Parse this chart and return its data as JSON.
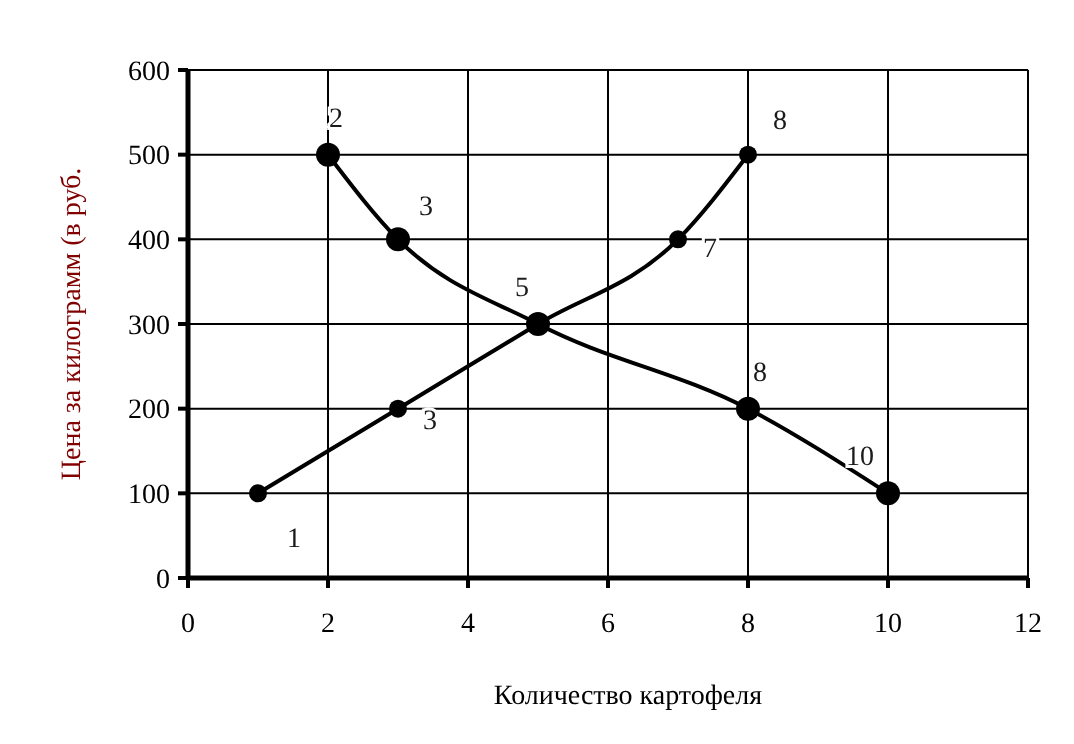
{
  "chart_data": {
    "type": "line",
    "xlabel": "Количество картофеля",
    "ylabel": "Цена за килограмм (в руб.",
    "xlim": [
      0,
      12
    ],
    "xticks": [
      0,
      2,
      4,
      6,
      8,
      10,
      12
    ],
    "ylim": [
      0,
      600
    ],
    "yticks": [
      0,
      100,
      200,
      300,
      400,
      500,
      600
    ],
    "grid": true,
    "marker": "circle",
    "line_style": "solid",
    "series": [
      {
        "color": "#000000",
        "x": [
          2,
          3,
          5,
          8,
          10
        ],
        "values": [
          500,
          400,
          300,
          200,
          100
        ]
      },
      {
        "color": "#000000",
        "x": [
          1,
          3,
          5,
          7,
          8
        ],
        "values": [
          100,
          200,
          300,
          400,
          500
        ]
      }
    ],
    "annotations": [
      {
        "text": "2",
        "x": 2,
        "y": 500
      },
      {
        "text": "3",
        "x": 3,
        "y": 400
      },
      {
        "text": "5",
        "x": 5,
        "y": 300
      },
      {
        "text": "8",
        "x": 8,
        "y": 200
      },
      {
        "text": "10",
        "x": 10,
        "y": 100
      },
      {
        "text": "1",
        "x": 1,
        "y": 100
      },
      {
        "text": "3",
        "x": 3,
        "y": 200
      },
      {
        "text": "7",
        "x": 7,
        "y": 400
      },
      {
        "text": "8",
        "x": 8,
        "y": 500
      }
    ]
  }
}
